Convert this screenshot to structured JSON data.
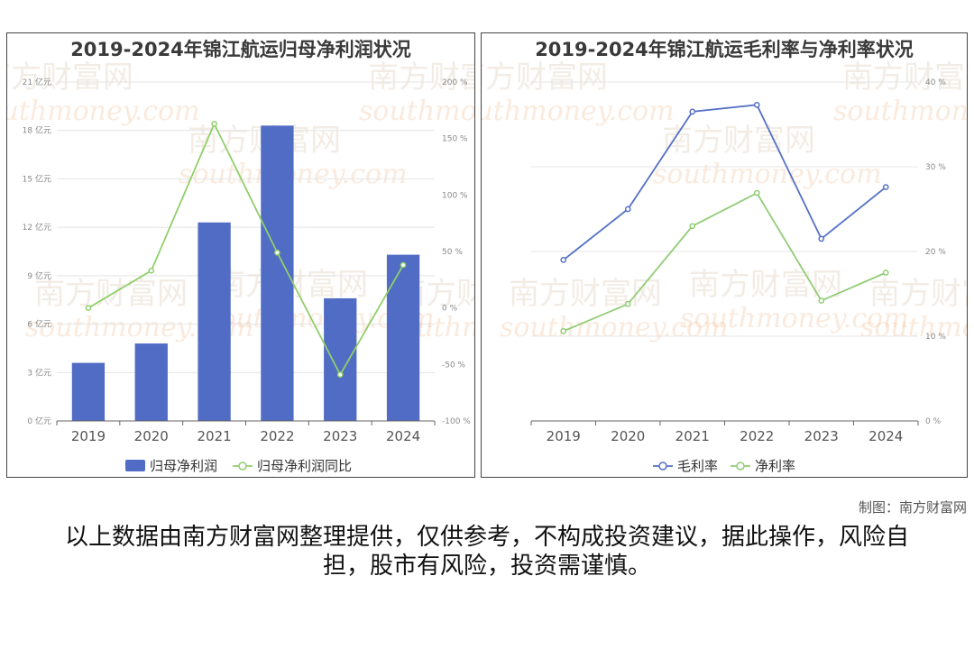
{
  "charts": {
    "left": {
      "title": "2019-2024年锦江航运归母净利润状况",
      "legend": [
        {
          "label": "归母净利润",
          "color": "#516cc4",
          "kind": "bar"
        },
        {
          "label": "归母净利润同比",
          "color": "#90cf6a",
          "kind": "line"
        }
      ]
    },
    "right": {
      "title": "2019-2024年锦江航运毛利率与净利率状况",
      "legend": [
        {
          "label": "毛利率",
          "color": "#5470c6",
          "kind": "line"
        },
        {
          "label": "净利率",
          "color": "#91cc75",
          "kind": "line"
        }
      ]
    }
  },
  "chart_data": [
    {
      "type": "bar",
      "title": "2019-2024年锦江航运归母净利润状况",
      "categories": [
        "2019",
        "2020",
        "2021",
        "2022",
        "2023",
        "2024"
      ],
      "series": [
        {
          "name": "归母净利润",
          "type": "bar",
          "axis": "left",
          "values": [
            3.6,
            4.8,
            12.3,
            18.3,
            7.6,
            10.3
          ]
        },
        {
          "name": "归母净利润同比",
          "type": "line",
          "axis": "right",
          "values": [
            0,
            33,
            163,
            49,
            -59,
            38
          ]
        }
      ],
      "y_left": {
        "min": 0,
        "max": 21,
        "step": 3,
        "ticks": [
          "0 亿元",
          "3 亿元",
          "6 亿元",
          "9 亿元",
          "12 亿元",
          "15 亿元",
          "18 亿元",
          "21 亿元"
        ]
      },
      "y_right": {
        "min": -100,
        "max": 200,
        "step": 50,
        "ticks": [
          "-100 %",
          "-50 %",
          "0 %",
          "50 %",
          "100 %",
          "150 %",
          "200 %"
        ]
      },
      "grid": true,
      "legend_position": "bottom"
    },
    {
      "type": "line",
      "title": "2019-2024年锦江航运毛利率与净利率状况",
      "categories": [
        "2019",
        "2020",
        "2021",
        "2022",
        "2023",
        "2024"
      ],
      "series": [
        {
          "name": "毛利率",
          "values": [
            19.0,
            25.0,
            36.5,
            37.3,
            21.5,
            27.6
          ]
        },
        {
          "name": "净利率",
          "values": [
            10.6,
            13.8,
            23.0,
            26.9,
            14.2,
            17.5
          ]
        }
      ],
      "y_right": {
        "min": 0,
        "max": 40,
        "step": 10,
        "ticks": [
          "0 %",
          "10 %",
          "20 %",
          "30 %",
          "40 %"
        ]
      },
      "grid": true,
      "legend_position": "bottom"
    }
  ],
  "footer": {
    "credit": "制图：南方财富网",
    "disclaimer": "以上数据由南方财富网整理提供，仅供参考，不构成投资建议，据此操作，风险自担，股市有风险，投资需谨慎。"
  },
  "watermark": {
    "cn": "南方财富网",
    "en": "southmoney.com"
  }
}
